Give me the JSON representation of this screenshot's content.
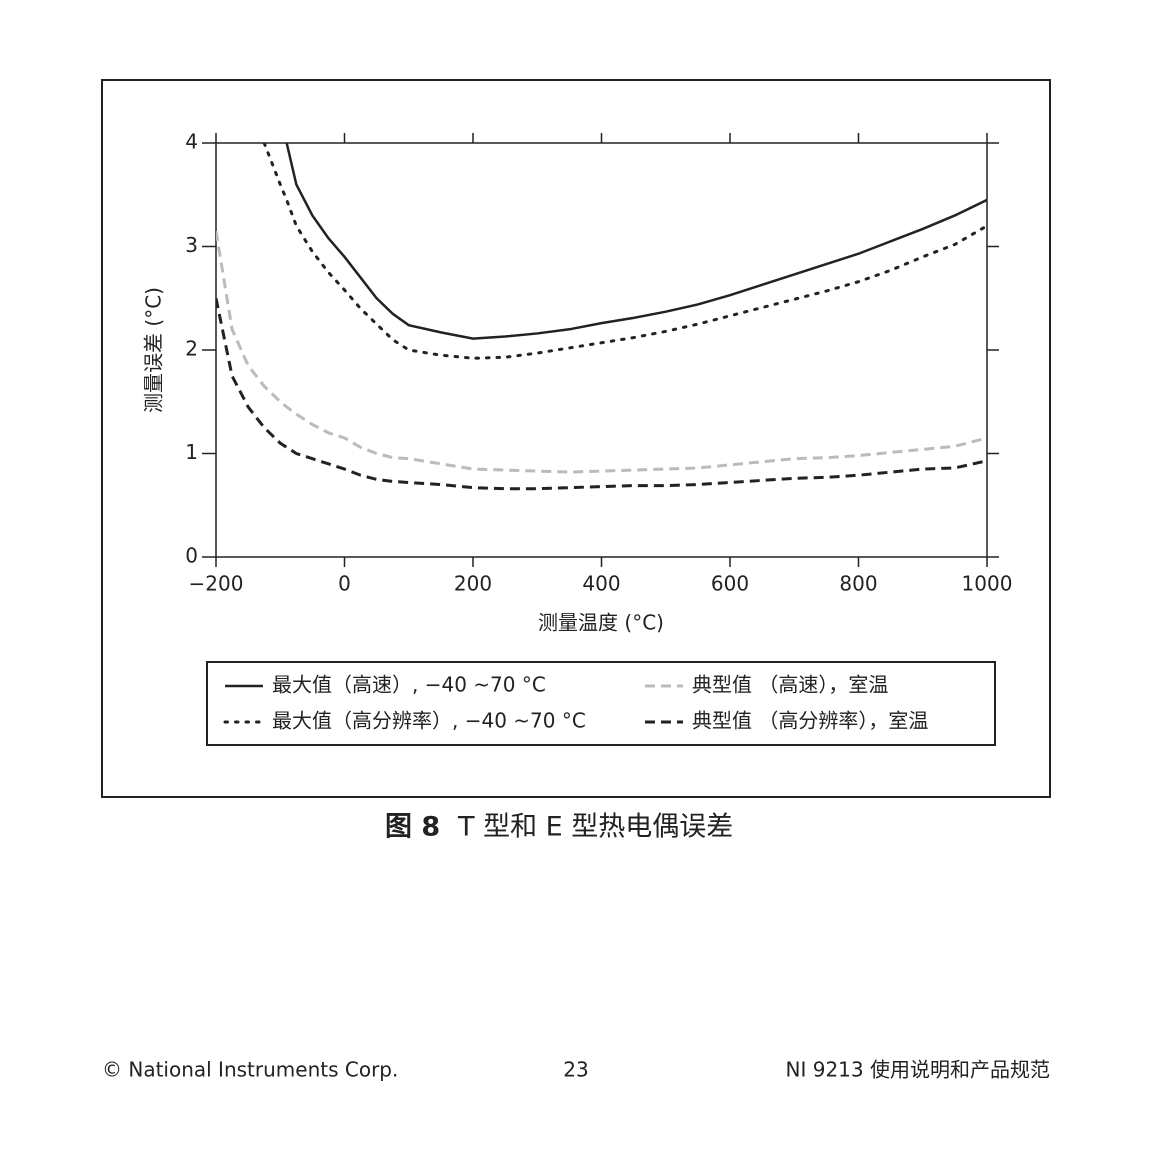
{
  "chart_data": {
    "type": "line",
    "xlabel": "测量温度 (°C)",
    "ylabel": "测量误差 (°C)",
    "x": [
      -200,
      -175,
      -150,
      -125,
      -100,
      -90,
      -75,
      -50,
      -25,
      0,
      25,
      50,
      75,
      100,
      150,
      200,
      250,
      300,
      350,
      400,
      450,
      500,
      550,
      600,
      650,
      700,
      750,
      800,
      850,
      900,
      950,
      1000
    ],
    "xlim": [
      -200,
      1000
    ],
    "ylim": [
      0,
      4
    ],
    "xticks": [
      {
        "value": -200,
        "label": "−200"
      },
      0,
      200,
      400,
      600,
      800,
      1000
    ],
    "yticks": [
      0,
      1,
      2,
      3,
      4
    ],
    "series": [
      {
        "name": "最大值（高速）, −40 ~70 °C",
        "color": "#222222",
        "style": "solid",
        "values": [
          null,
          null,
          null,
          null,
          null,
          4.0,
          3.6,
          3.3,
          3.08,
          2.9,
          2.7,
          2.5,
          2.35,
          2.24,
          2.17,
          2.11,
          2.13,
          2.16,
          2.2,
          2.26,
          2.31,
          2.37,
          2.44,
          2.53,
          2.63,
          2.73,
          2.83,
          2.93,
          3.05,
          3.17,
          3.3,
          3.45
        ]
      },
      {
        "name": "典型值 （高速），室温",
        "color": "#bbbbbb",
        "style": "dashed",
        "values": [
          3.15,
          2.2,
          1.85,
          1.65,
          1.5,
          1.45,
          1.38,
          1.28,
          1.2,
          1.15,
          1.06,
          1.0,
          0.96,
          0.95,
          0.9,
          0.85,
          0.84,
          0.83,
          0.82,
          0.83,
          0.84,
          0.85,
          0.86,
          0.89,
          0.92,
          0.95,
          0.96,
          0.98,
          1.01,
          1.04,
          1.07,
          1.15
        ]
      },
      {
        "name": "最大值（高分辨率）, −40 ~70 °C",
        "color": "#222222",
        "style": "dotted",
        "values": [
          null,
          null,
          null,
          4.0,
          3.6,
          3.45,
          3.2,
          2.95,
          2.75,
          2.58,
          2.4,
          2.25,
          2.1,
          2.0,
          1.95,
          1.92,
          1.93,
          1.97,
          2.02,
          2.07,
          2.12,
          2.18,
          2.25,
          2.33,
          2.41,
          2.49,
          2.57,
          2.66,
          2.77,
          2.9,
          3.02,
          3.2
        ]
      },
      {
        "name": "典型值 （高分辨率），室温",
        "color": "#222222",
        "style": "dashed",
        "values": [
          2.5,
          1.75,
          1.45,
          1.25,
          1.1,
          1.06,
          1.0,
          0.95,
          0.9,
          0.85,
          0.79,
          0.75,
          0.73,
          0.72,
          0.7,
          0.67,
          0.66,
          0.66,
          0.67,
          0.68,
          0.69,
          0.69,
          0.7,
          0.72,
          0.74,
          0.76,
          0.77,
          0.79,
          0.82,
          0.85,
          0.86,
          0.93
        ]
      }
    ]
  },
  "caption": {
    "label": "图 8",
    "text": "T 型和 E 型热电偶误差"
  },
  "footer": {
    "left": "© National Instruments Corp.",
    "center": "23",
    "right": "NI 9213 使用说明和产品规范"
  }
}
